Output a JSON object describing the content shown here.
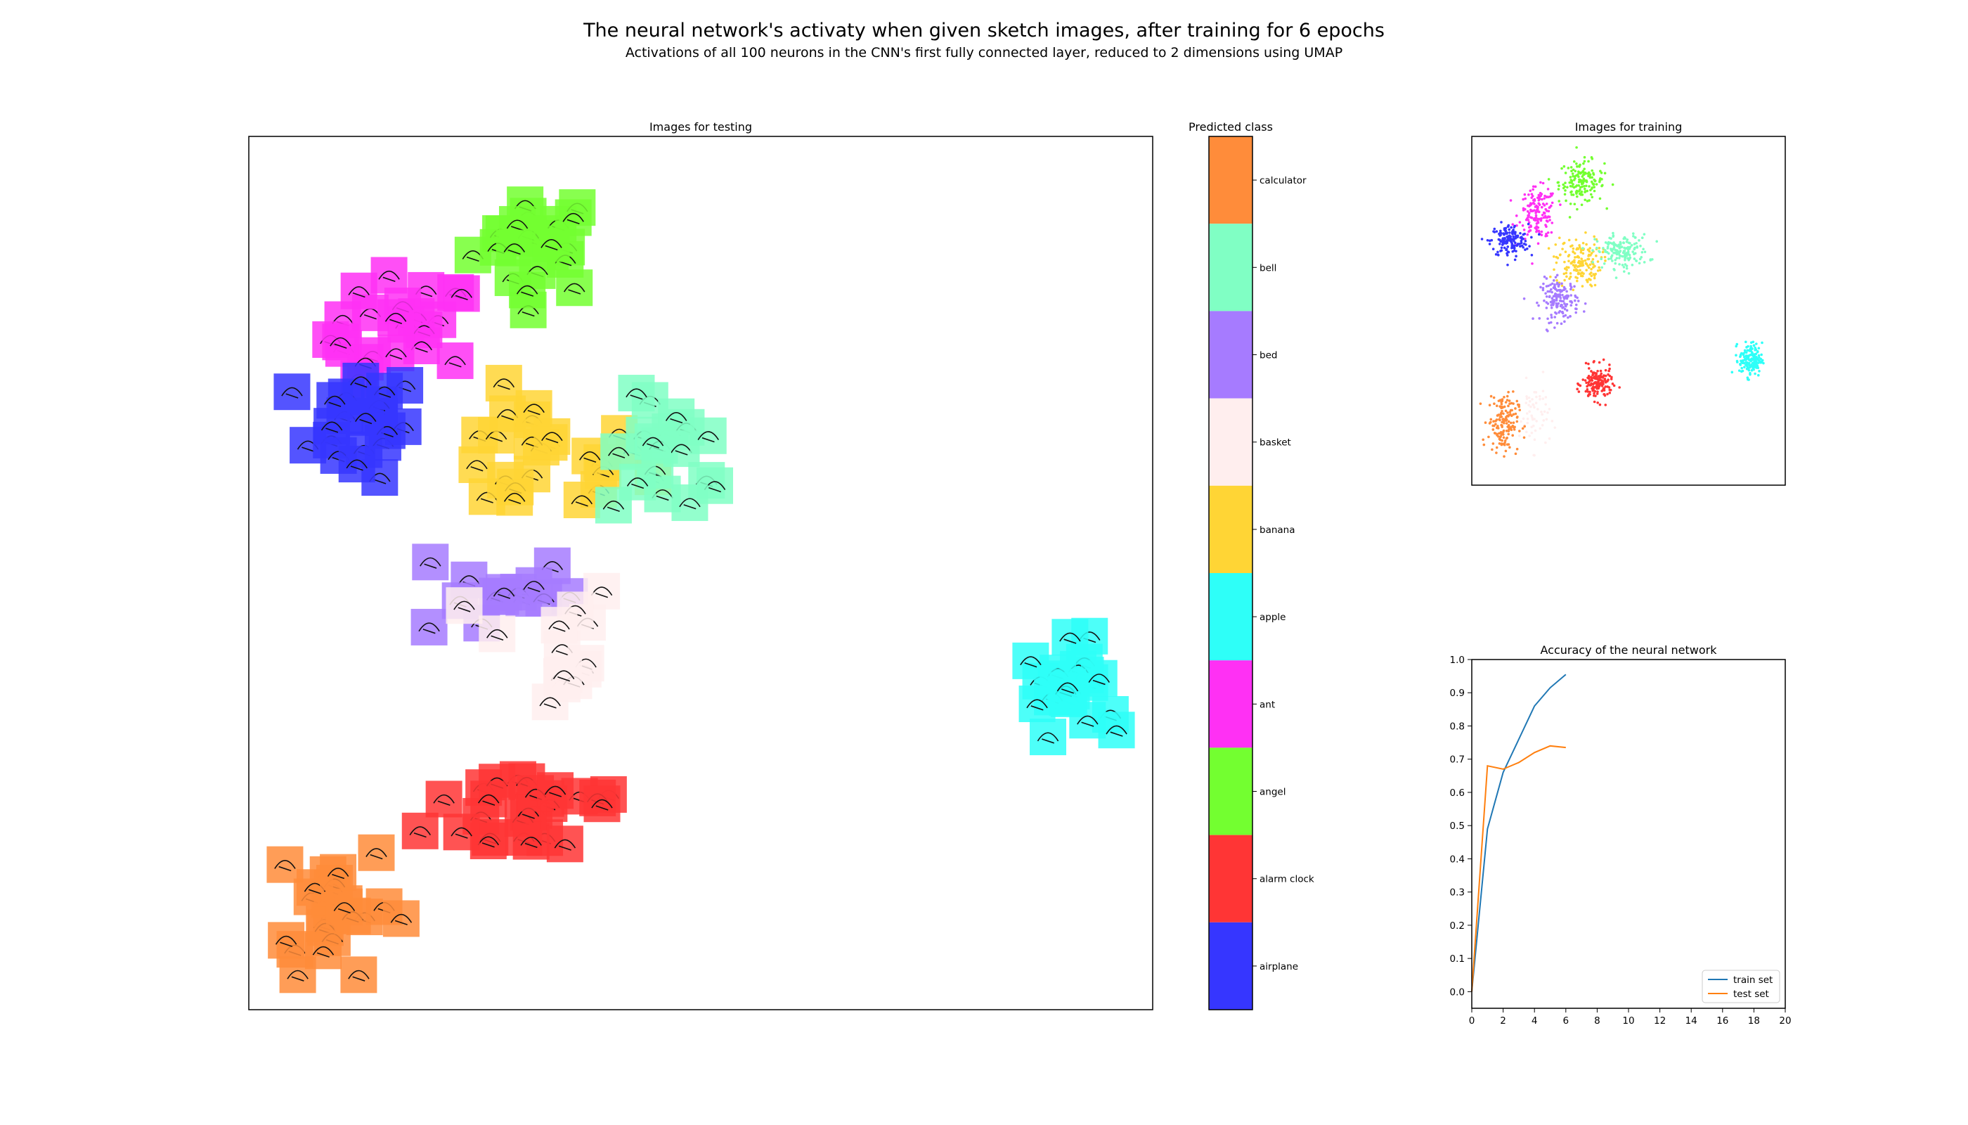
{
  "title": "The neural network's activaty when given sketch images, after training for 6 epochs",
  "subtitle": "Activations of all 100 neurons in the CNN's first fully connected layer, reduced to 2 dimensions using UMAP",
  "chart_data": [
    {
      "type": "scatter",
      "title": "Images for testing",
      "description_kind": "thumbnail-sketch-scatter",
      "xlim": [
        0,
        1
      ],
      "ylim": [
        0,
        1
      ],
      "axes_ticks": false,
      "clusters": [
        {
          "class": "angel",
          "x": 0.32,
          "y": 0.88,
          "spread": [
            0.07,
            0.06
          ],
          "count": 24
        },
        {
          "class": "ant",
          "x": 0.17,
          "y": 0.77,
          "spread": [
            0.08,
            0.07
          ],
          "count": 22
        },
        {
          "class": "airplane",
          "x": 0.12,
          "y": 0.67,
          "spread": [
            0.07,
            0.06
          ],
          "count": 20
        },
        {
          "class": "banana",
          "x": 0.32,
          "y": 0.63,
          "spread": [
            0.12,
            0.07
          ],
          "count": 24
        },
        {
          "class": "bell",
          "x": 0.47,
          "y": 0.63,
          "spread": [
            0.07,
            0.07
          ],
          "count": 18
        },
        {
          "class": "bed",
          "x": 0.27,
          "y": 0.48,
          "spread": [
            0.09,
            0.06
          ],
          "count": 14
        },
        {
          "class": "basket",
          "x": 0.33,
          "y": 0.42,
          "spread": [
            0.08,
            0.08
          ],
          "count": 14
        },
        {
          "class": "alarm clock",
          "x": 0.32,
          "y": 0.23,
          "spread": [
            0.12,
            0.06
          ],
          "count": 26
        },
        {
          "class": "calculator",
          "x": 0.09,
          "y": 0.12,
          "spread": [
            0.07,
            0.08
          ],
          "count": 24
        },
        {
          "class": "apple",
          "x": 0.91,
          "y": 0.37,
          "spread": [
            0.05,
            0.05
          ],
          "count": 22
        }
      ]
    },
    {
      "type": "colorbar",
      "title": "Predicted class",
      "classes": [
        {
          "label": "calculator",
          "color": "#ff8c3a"
        },
        {
          "label": "bell",
          "color": "#80ffc4"
        },
        {
          "label": "bed",
          "color": "#a67bff"
        },
        {
          "label": "basket",
          "color": "#ffeeee"
        },
        {
          "label": "banana",
          "color": "#ffd535"
        },
        {
          "label": "apple",
          "color": "#2efff8"
        },
        {
          "label": "ant",
          "color": "#ff30f4"
        },
        {
          "label": "angel",
          "color": "#73ff30"
        },
        {
          "label": "alarm clock",
          "color": "#ff3535"
        },
        {
          "label": "airplane",
          "color": "#3636ff"
        }
      ]
    },
    {
      "type": "scatter",
      "title": "Images for training",
      "axes_ticks": false,
      "xlim": [
        0,
        1
      ],
      "ylim": [
        0,
        1
      ],
      "clusters": [
        {
          "class": "angel",
          "x": 0.35,
          "y": 0.87,
          "spread": [
            0.06,
            0.05
          ],
          "count": 160
        },
        {
          "class": "ant",
          "x": 0.21,
          "y": 0.78,
          "spread": [
            0.05,
            0.06
          ],
          "count": 160
        },
        {
          "class": "airplane",
          "x": 0.12,
          "y": 0.7,
          "spread": [
            0.05,
            0.04
          ],
          "count": 160
        },
        {
          "class": "banana",
          "x": 0.34,
          "y": 0.64,
          "spread": [
            0.06,
            0.06
          ],
          "count": 160
        },
        {
          "class": "bell",
          "x": 0.48,
          "y": 0.67,
          "spread": [
            0.07,
            0.04
          ],
          "count": 160
        },
        {
          "class": "bed",
          "x": 0.28,
          "y": 0.53,
          "spread": [
            0.05,
            0.05
          ],
          "count": 160
        },
        {
          "class": "basket",
          "x": 0.2,
          "y": 0.2,
          "spread": [
            0.04,
            0.08
          ],
          "count": 60
        },
        {
          "class": "alarm clock",
          "x": 0.4,
          "y": 0.29,
          "spread": [
            0.04,
            0.04
          ],
          "count": 160
        },
        {
          "class": "calculator",
          "x": 0.1,
          "y": 0.18,
          "spread": [
            0.04,
            0.07
          ],
          "count": 160
        },
        {
          "class": "apple",
          "x": 0.89,
          "y": 0.36,
          "spread": [
            0.03,
            0.04
          ],
          "count": 160
        }
      ]
    },
    {
      "type": "line",
      "title": "Accuracy of the neural network",
      "xlim": [
        0,
        20
      ],
      "ylim": [
        -0.05,
        1.0
      ],
      "xticks": [
        0,
        2,
        4,
        6,
        8,
        10,
        12,
        14,
        16,
        18,
        20
      ],
      "yticks": [
        "0.0",
        "0.1",
        "0.2",
        "0.3",
        "0.4",
        "0.5",
        "0.6",
        "0.7",
        "0.8",
        "0.9",
        "1.0"
      ],
      "x": [
        0,
        1,
        2,
        3,
        4,
        5,
        6
      ],
      "series": [
        {
          "name": "train set",
          "color": "#1f77b4",
          "values": [
            0.0,
            0.49,
            0.66,
            0.76,
            0.86,
            0.915,
            0.955
          ]
        },
        {
          "name": "test set",
          "color": "#ff7f0e",
          "values": [
            0.0,
            0.68,
            0.67,
            0.69,
            0.72,
            0.74,
            0.735
          ]
        }
      ],
      "legend": "bottom-right"
    }
  ]
}
